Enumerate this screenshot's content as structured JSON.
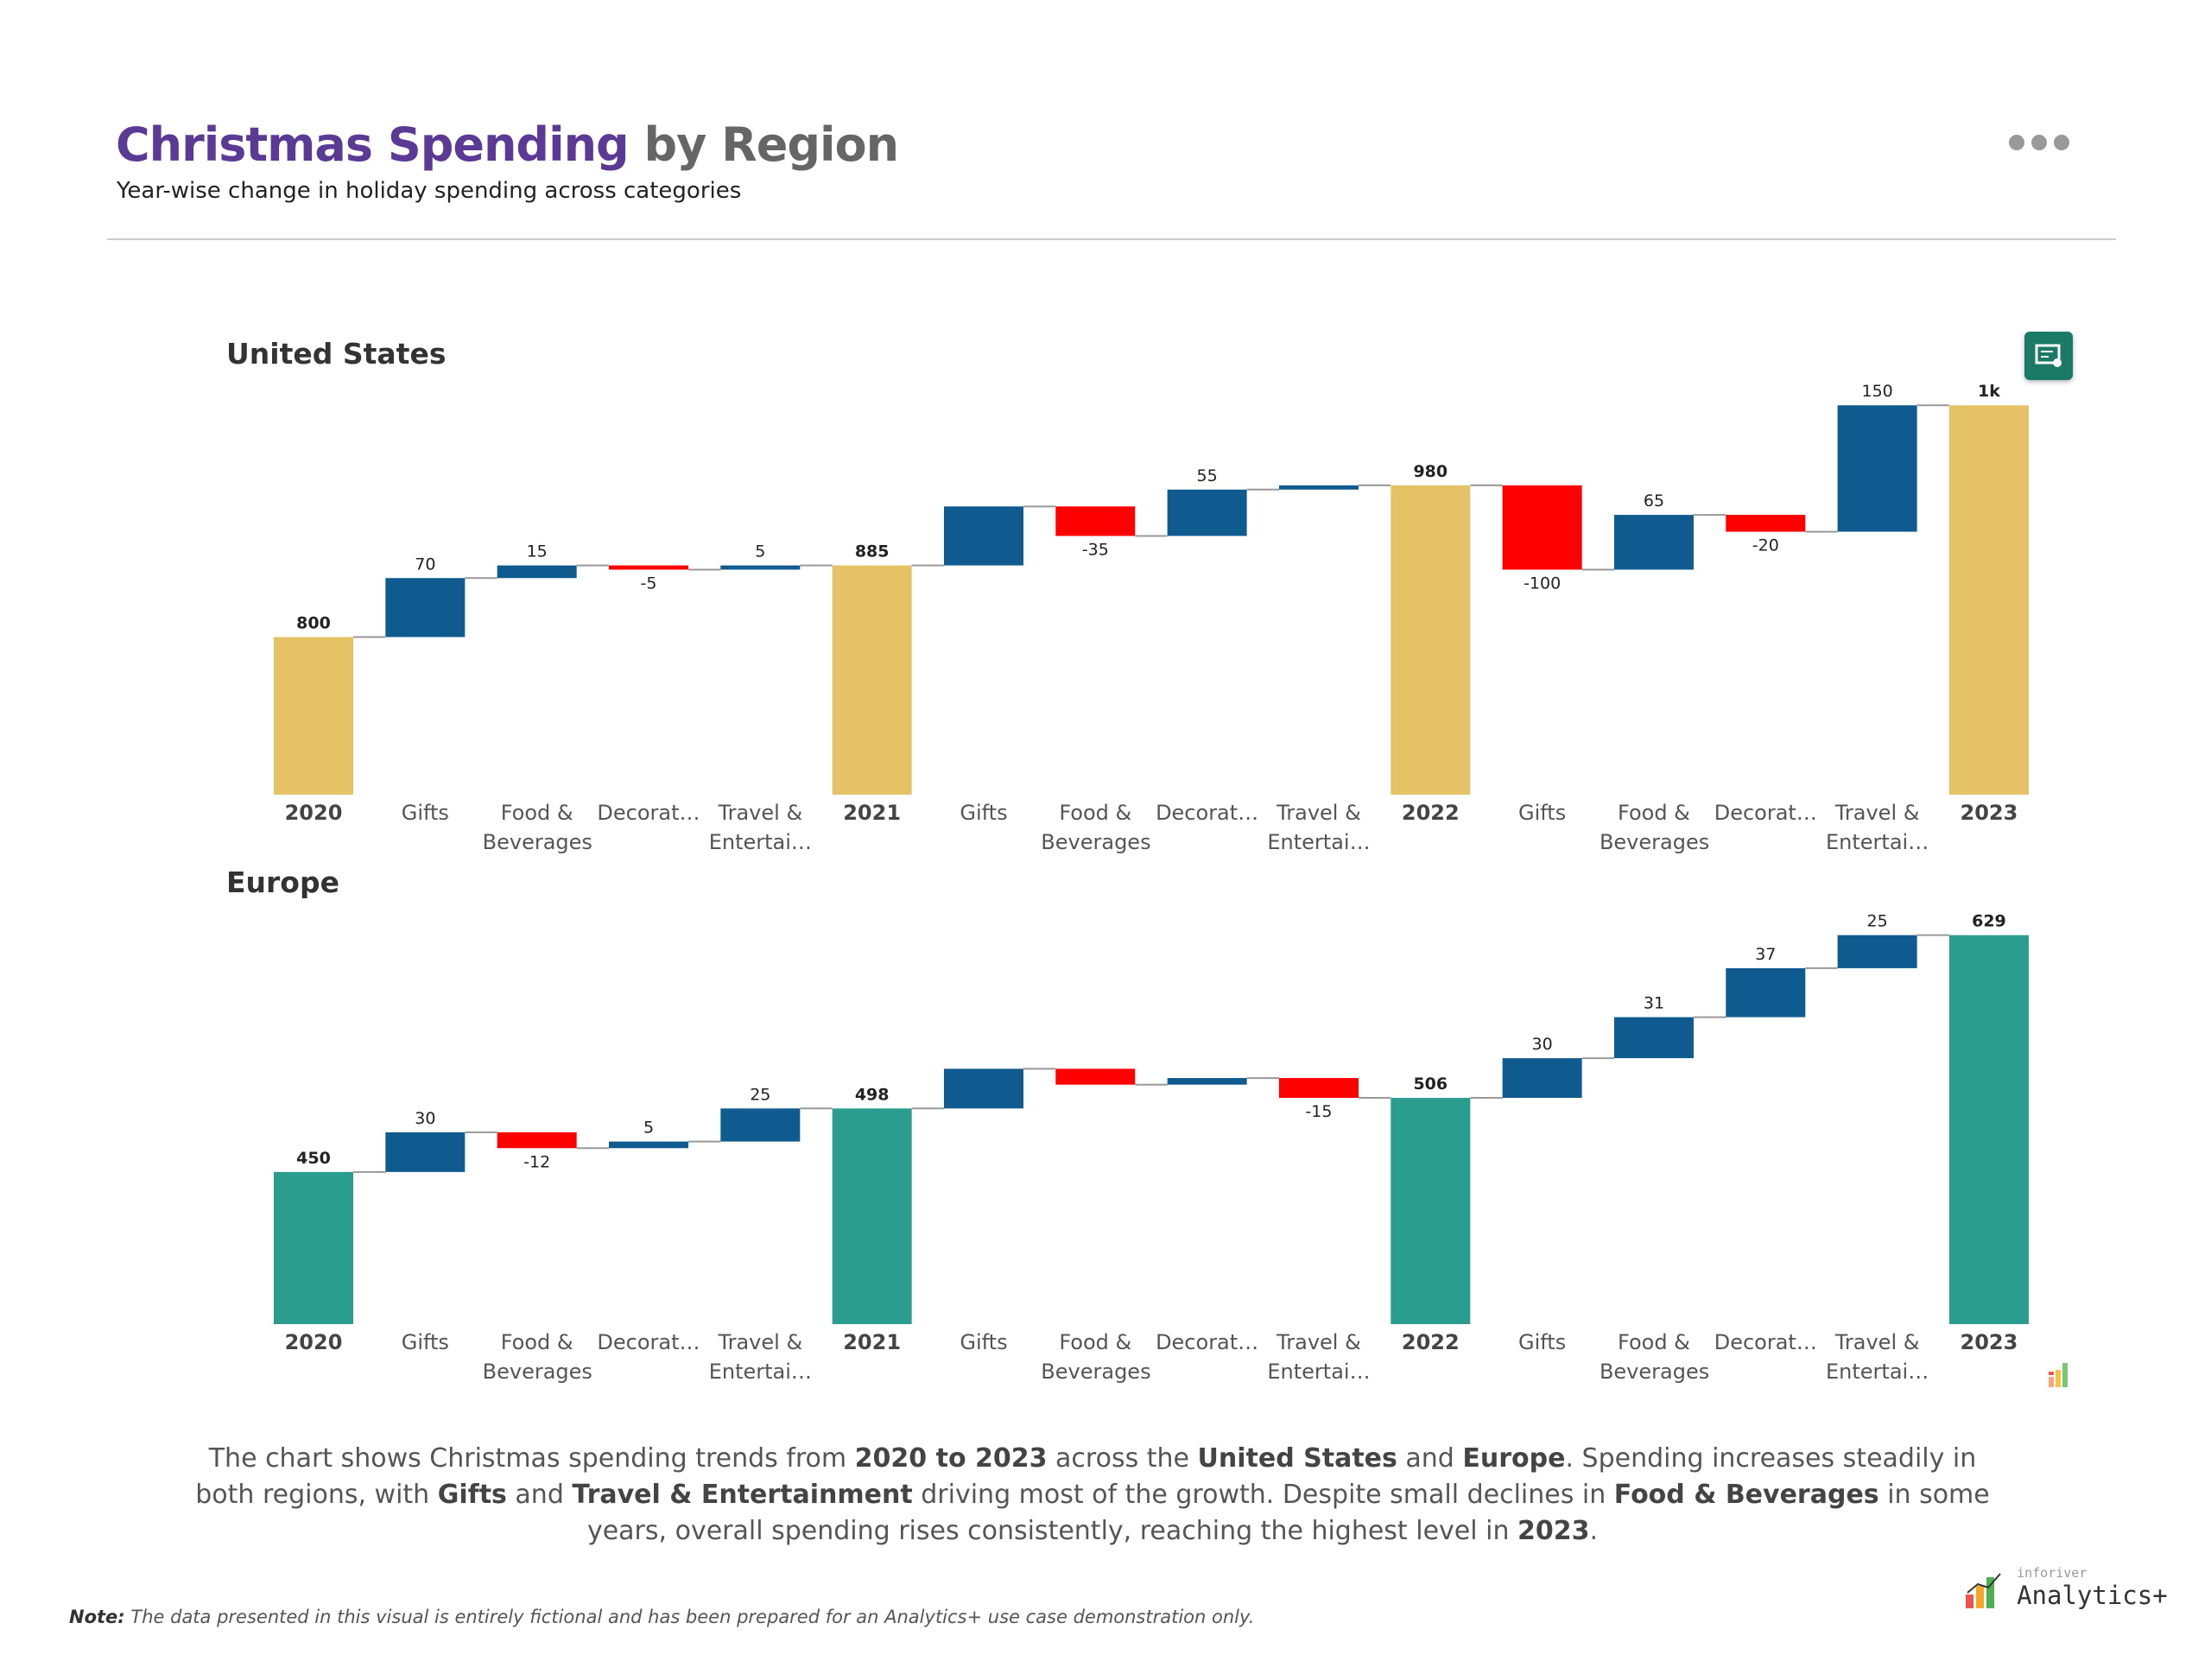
{
  "header": {
    "title_part1": "Christmas Spending",
    "title_part2": "by Region",
    "subtitle": "Year-wise change in holiday spending across categories"
  },
  "chart_data": [
    {
      "type": "waterfall",
      "title": "United States",
      "categories": [
        "2020",
        "Gifts",
        "Food & Beverages",
        "Decorat…",
        "Travel & Entertai…",
        "2021",
        "Gifts",
        "Food & Beverages",
        "Decorat…",
        "Travel & Entertai…",
        "2022",
        "Gifts",
        "Food & Beverages",
        "Decorat…",
        "Travel & Entertai…",
        "2023"
      ],
      "is_total": [
        true,
        false,
        false,
        false,
        false,
        true,
        false,
        false,
        false,
        false,
        true,
        false,
        false,
        false,
        false,
        true
      ],
      "values": [
        800,
        70,
        15,
        -5,
        5,
        885,
        70,
        -35,
        55,
        5,
        980,
        -100,
        65,
        -20,
        150,
        1075
      ],
      "value_labels": [
        "800",
        "70",
        "15",
        "-5",
        "5",
        "885",
        null,
        "-35",
        "55",
        null,
        "980",
        "-100",
        "65",
        "-20",
        "150",
        "1k"
      ],
      "total_color": "#e6c266",
      "increase_color": "#0f5b8f",
      "decrease_color": "#ff0000",
      "ylim": [
        613,
        1106
      ]
    },
    {
      "type": "waterfall",
      "title": "Europe",
      "categories": [
        "2020",
        "Gifts",
        "Food & Beverages",
        "Decorat…",
        "Travel & Entertai…",
        "2021",
        "Gifts",
        "Food & Beverages",
        "Decorat…",
        "Travel & Entertai…",
        "2022",
        "Gifts",
        "Food & Beverages",
        "Decorat…",
        "Travel & Entertai…",
        "2023"
      ],
      "is_total": [
        true,
        false,
        false,
        false,
        false,
        true,
        false,
        false,
        false,
        false,
        true,
        false,
        false,
        false,
        false,
        true
      ],
      "values": [
        450,
        30,
        -12,
        5,
        25,
        498,
        30,
        -12,
        5,
        -15,
        506,
        30,
        31,
        37,
        25,
        629
      ],
      "value_labels": [
        "450",
        "30",
        "-12",
        "5",
        "25",
        "498",
        null,
        null,
        null,
        "-15",
        "506",
        "30",
        "31",
        "37",
        "25",
        "629"
      ],
      "total_color": "#2a9d8f",
      "increase_color": "#0f5b8f",
      "decrease_color": "#ff0000",
      "ylim": [
        335,
        649
      ]
    }
  ],
  "summary": [
    {
      "text": "The chart shows Christmas spending trends from ",
      "bold": false
    },
    {
      "text": "2020 to 2023",
      "bold": true
    },
    {
      "text": " across the ",
      "bold": false
    },
    {
      "text": "United States",
      "bold": true
    },
    {
      "text": " and ",
      "bold": false
    },
    {
      "text": "Europe",
      "bold": true
    },
    {
      "text": ". Spending increases steadily in both regions, with ",
      "bold": false
    },
    {
      "text": "Gifts",
      "bold": true
    },
    {
      "text": " and ",
      "bold": false
    },
    {
      "text": "Travel & Entertainment",
      "bold": true
    },
    {
      "text": " driving most of the growth. Despite small declines in ",
      "bold": false
    },
    {
      "text": "Food & Beverages",
      "bold": true
    },
    {
      "text": " in some years, overall spending rises consistently, reaching the highest level in ",
      "bold": false
    },
    {
      "text": "2023",
      "bold": true
    },
    {
      "text": ".",
      "bold": false
    }
  ],
  "note": {
    "label": "Note:",
    "text": "The data presented in this visual is entirely fictional and has been prepared for an Analytics+ use case demonstration only."
  },
  "logo": {
    "small": "inforiver",
    "main": "Analytics+"
  }
}
